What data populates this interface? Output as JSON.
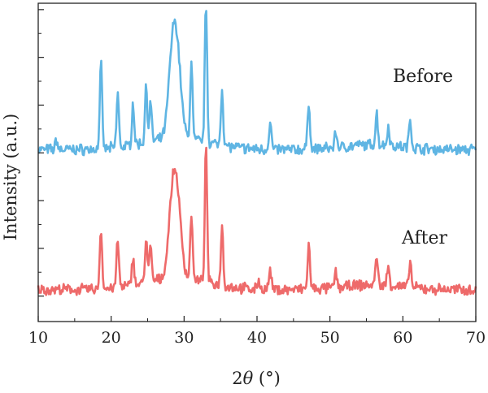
{
  "chart_data": {
    "type": "line",
    "xlabel": "2θ (°)",
    "xlabel_parts": {
      "prefix": "2",
      "symbol": "θ",
      "unit": " (°)"
    },
    "ylabel": "Intensity (a.u.)",
    "xlim": [
      10,
      70
    ],
    "ylim": [
      0,
      10
    ],
    "x_ticks": [
      10,
      20,
      30,
      40,
      50,
      60,
      70
    ],
    "y_ticks_unlabeled": [
      0.8,
      2.3,
      3.8,
      5.3,
      6.8,
      8.3,
      9.8
    ],
    "grid": false,
    "legend": "inline labels",
    "series": [
      {
        "name": "Before",
        "color": "#5fb5e3",
        "baseline": 5.4,
        "peaks": [
          {
            "x": 12.5,
            "y": 5.7
          },
          {
            "x": 18.6,
            "y": 8.1
          },
          {
            "x": 20.9,
            "y": 7.1
          },
          {
            "x": 23.0,
            "y": 6.7
          },
          {
            "x": 24.8,
            "y": 7.2
          },
          {
            "x": 25.4,
            "y": 6.6
          },
          {
            "x": 28.4,
            "y": 7.8
          },
          {
            "x": 29.1,
            "y": 7.5
          },
          {
            "x": 31.0,
            "y": 7.8
          },
          {
            "x": 33.0,
            "y": 9.8
          },
          {
            "x": 35.2,
            "y": 7.2
          },
          {
            "x": 41.8,
            "y": 6.3
          },
          {
            "x": 47.1,
            "y": 6.9
          },
          {
            "x": 50.8,
            "y": 5.9
          },
          {
            "x": 56.4,
            "y": 6.4
          },
          {
            "x": 58.0,
            "y": 6.0
          },
          {
            "x": 61.0,
            "y": 6.3
          }
        ]
      },
      {
        "name": "After",
        "color": "#ee6a6a",
        "baseline": 1.0,
        "peaks": [
          {
            "x": 18.6,
            "y": 2.9
          },
          {
            "x": 20.9,
            "y": 2.5
          },
          {
            "x": 23.0,
            "y": 1.9
          },
          {
            "x": 24.8,
            "y": 2.4
          },
          {
            "x": 25.4,
            "y": 2.1
          },
          {
            "x": 28.4,
            "y": 3.2
          },
          {
            "x": 29.1,
            "y": 3.0
          },
          {
            "x": 31.0,
            "y": 3.1
          },
          {
            "x": 33.0,
            "y": 5.2
          },
          {
            "x": 35.2,
            "y": 2.9
          },
          {
            "x": 40.2,
            "y": 1.3
          },
          {
            "x": 41.8,
            "y": 1.6
          },
          {
            "x": 47.1,
            "y": 2.4
          },
          {
            "x": 50.8,
            "y": 1.5
          },
          {
            "x": 56.4,
            "y": 1.9
          },
          {
            "x": 58.0,
            "y": 1.6
          },
          {
            "x": 61.0,
            "y": 1.8
          }
        ]
      }
    ]
  }
}
